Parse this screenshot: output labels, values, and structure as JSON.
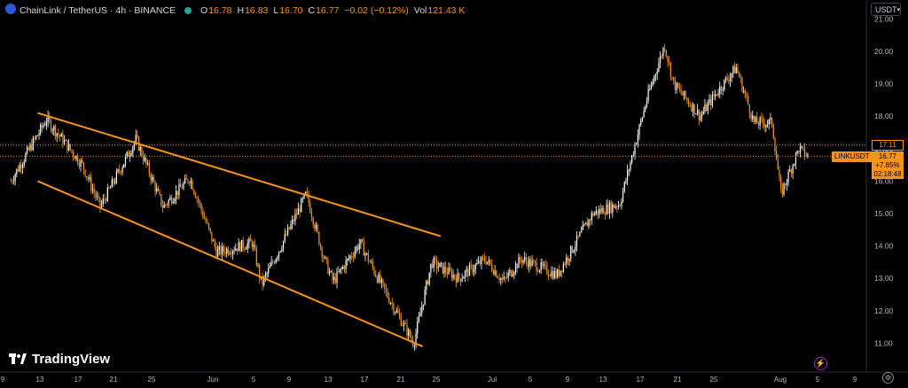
{
  "header": {
    "symbol": "ChainLink / TetherUS · 4h · BINANCE",
    "ohlc": [
      {
        "k": "O",
        "v": "16.78"
      },
      {
        "k": "H",
        "v": "16.83"
      },
      {
        "k": "L",
        "v": "16.70"
      },
      {
        "k": "C",
        "v": "16.77"
      },
      {
        "k": "",
        "v": "−0.02 (−0.12%)"
      },
      {
        "k": "Vol",
        "v": "121.43 K"
      }
    ]
  },
  "currency_selector": {
    "label": "USDT",
    "icon": "chevron-down-icon"
  },
  "price_axis": {
    "ticks": [
      "21.00",
      "20.00",
      "19.00",
      "18.00",
      "17.00",
      "16.00",
      "15.00",
      "14.00",
      "13.00",
      "12.00",
      "11.00"
    ],
    "high_label": "17.11",
    "symbol_tag": "LINKUSDT",
    "last_price": "16.77",
    "change_pct": "+7.85%",
    "countdown": "02:18:48"
  },
  "time_axis": {
    "ticks": [
      "9",
      "13",
      "17",
      "21",
      "25",
      "Jun",
      "5",
      "9",
      "13",
      "17",
      "21",
      "25",
      "Jul",
      "5",
      "9",
      "13",
      "17",
      "21",
      "25",
      "Aug",
      "5",
      "9"
    ]
  },
  "branding": {
    "name": "TradingView"
  },
  "colors": {
    "up": "#ffffff",
    "down": "#f7931a",
    "trendline": "#f7931a",
    "background": "#000000"
  },
  "chart_data": {
    "type": "candlestick",
    "title": "ChainLink / TetherUS · 4h · BINANCE",
    "ylim": [
      10.5,
      21.2
    ],
    "key_points": [
      {
        "x": "May 9",
        "y": 16.0
      },
      {
        "x": "May 13",
        "y": 17.9
      },
      {
        "x": "May 17",
        "y": 16.5
      },
      {
        "x": "May 19",
        "y": 15.2
      },
      {
        "x": "May 23",
        "y": 17.3
      },
      {
        "x": "May 26",
        "y": 15.2
      },
      {
        "x": "May 29",
        "y": 16.1
      },
      {
        "x": "Jun 1",
        "y": 13.8
      },
      {
        "x": "Jun 5",
        "y": 14.1
      },
      {
        "x": "Jun 6",
        "y": 12.8
      },
      {
        "x": "Jun 8",
        "y": 13.9
      },
      {
        "x": "Jun 11",
        "y": 15.6
      },
      {
        "x": "Jun 13",
        "y": 13.6
      },
      {
        "x": "Jun 14",
        "y": 12.9
      },
      {
        "x": "Jun 17",
        "y": 14.1
      },
      {
        "x": "Jun 19",
        "y": 13.0
      },
      {
        "x": "Jun 23",
        "y": 11.0
      },
      {
        "x": "Jun 25",
        "y": 13.5
      },
      {
        "x": "Jun 28",
        "y": 13.0
      },
      {
        "x": "Jul 1",
        "y": 13.6
      },
      {
        "x": "Jul 3",
        "y": 12.9
      },
      {
        "x": "Jul 5",
        "y": 13.6
      },
      {
        "x": "Jul 9",
        "y": 13.1
      },
      {
        "x": "Jul 13",
        "y": 15.0
      },
      {
        "x": "Jul 16",
        "y": 15.3
      },
      {
        "x": "Jul 19",
        "y": 18.5
      },
      {
        "x": "Jul 21",
        "y": 20.2
      },
      {
        "x": "Jul 22",
        "y": 19.0
      },
      {
        "x": "Jul 25",
        "y": 18.0
      },
      {
        "x": "Jul 27",
        "y": 18.8
      },
      {
        "x": "Jul 29",
        "y": 19.5
      },
      {
        "x": "Jul 31",
        "y": 17.8
      },
      {
        "x": "Aug 2",
        "y": 17.8
      },
      {
        "x": "Aug 3",
        "y": 15.6
      },
      {
        "x": "Aug 5",
        "y": 17.0
      },
      {
        "x": "Aug 6",
        "y": 16.77
      }
    ],
    "trendlines": [
      {
        "from": {
          "x": "May 12",
          "y": 18.1
        },
        "to": {
          "x": "Jun 26",
          "y": 14.3
        }
      },
      {
        "from": {
          "x": "May 12",
          "y": 16.0
        },
        "to": {
          "x": "Jun 24",
          "y": 10.9
        }
      }
    ],
    "horizontal_lines": [
      {
        "y": 17.11,
        "style": "dotted"
      },
      {
        "y": 16.77,
        "style": "dotted"
      }
    ]
  }
}
